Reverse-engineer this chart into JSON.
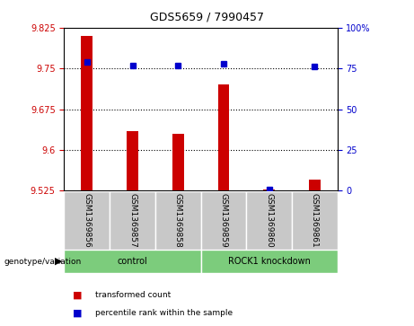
{
  "title": "GDS5659 / 7990457",
  "samples": [
    "GSM1369856",
    "GSM1369857",
    "GSM1369858",
    "GSM1369859",
    "GSM1369860",
    "GSM1369861"
  ],
  "red_values": [
    9.81,
    9.635,
    9.63,
    9.72,
    9.527,
    9.545
  ],
  "blue_values": [
    79,
    77,
    77,
    78,
    1,
    76
  ],
  "ylim_left": [
    9.525,
    9.825
  ],
  "ylim_right": [
    0,
    100
  ],
  "yticks_left": [
    9.525,
    9.6,
    9.675,
    9.75,
    9.825
  ],
  "yticks_right": [
    0,
    25,
    50,
    75,
    100
  ],
  "ytick_labels_left": [
    "9.525",
    "9.6",
    "9.675",
    "9.75",
    "9.825"
  ],
  "ytick_labels_right": [
    "0",
    "25",
    "50",
    "75",
    "100%"
  ],
  "hlines": [
    9.75,
    9.675,
    9.6
  ],
  "bar_color": "#cc0000",
  "dot_color": "#0000cc",
  "sample_bg_color": "#c8c8c8",
  "group_color": "#7ccc7c",
  "plot_bg": "#ffffff",
  "legend_items": [
    {
      "color": "#cc0000",
      "label": "transformed count"
    },
    {
      "color": "#0000cc",
      "label": "percentile rank within the sample"
    }
  ],
  "group_ranges": [
    [
      -0.5,
      2.5
    ],
    [
      2.5,
      5.5
    ]
  ],
  "group_labels": [
    "control",
    "ROCK1 knockdown"
  ]
}
